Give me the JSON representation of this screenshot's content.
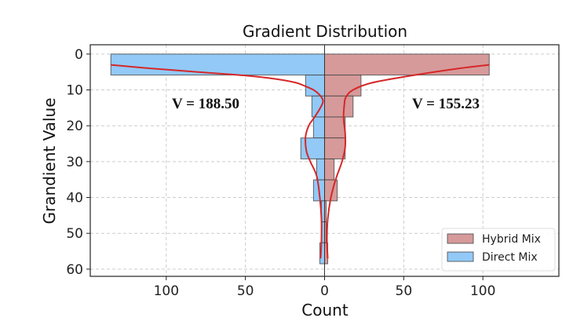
{
  "chart_data": {
    "type": "bar",
    "orientation": "horizontal-mirrored",
    "title": "Gradient Distribution",
    "xlabel": "Count",
    "ylabel": "Grandient Value",
    "xlim": [
      -148,
      148
    ],
    "ylim": [
      62,
      -2.6
    ],
    "xticks": [
      -100,
      -50,
      0,
      50,
      100
    ],
    "xtick_labels": [
      "100",
      "50",
      "0",
      "50",
      "100"
    ],
    "yticks": [
      0,
      10,
      20,
      30,
      40,
      50,
      60
    ],
    "ytick_labels": [
      "0",
      "10",
      "20",
      "30",
      "40",
      "50",
      "60"
    ],
    "grid": true,
    "legend_position": "bottom-right",
    "bin_edges": [
      0,
      5.85,
      11.7,
      17.55,
      23.4,
      29.25,
      35.1,
      40.95,
      46.8,
      52.65,
      58.5
    ],
    "series": [
      {
        "name": "Hybrid Mix",
        "side": "right",
        "color": "#d69a9a",
        "counts": [
          104,
          23,
          18,
          13,
          13,
          6,
          8,
          1,
          1,
          2
        ],
        "kde": [
          [
            3,
            104
          ],
          [
            4,
            85
          ],
          [
            6,
            55
          ],
          [
            8,
            30
          ],
          [
            10,
            18
          ],
          [
            12,
            13.5
          ],
          [
            14,
            12.5
          ],
          [
            18,
            12
          ],
          [
            22,
            13
          ],
          [
            26,
            13
          ],
          [
            30,
            11
          ],
          [
            35,
            7
          ],
          [
            40,
            4
          ],
          [
            46,
            2
          ],
          [
            52,
            1.5
          ],
          [
            57,
            2
          ]
        ],
        "annotation": "V = 155.23"
      },
      {
        "name": "Direct Mix",
        "side": "left",
        "color": "#92c9f7",
        "counts": [
          135,
          12,
          8,
          7,
          15,
          5,
          7,
          2,
          2,
          3
        ],
        "kde": [
          [
            3,
            135
          ],
          [
            4,
            110
          ],
          [
            5,
            80
          ],
          [
            6,
            50
          ],
          [
            7,
            30
          ],
          [
            8,
            18
          ],
          [
            9,
            12
          ],
          [
            10,
            7
          ],
          [
            11,
            4
          ],
          [
            12,
            2
          ],
          [
            13,
            1
          ],
          [
            14,
            1.5
          ],
          [
            16,
            4
          ],
          [
            18,
            7
          ],
          [
            20,
            10
          ],
          [
            23,
            12
          ],
          [
            27,
            11.5
          ],
          [
            30,
            9
          ],
          [
            34,
            5
          ],
          [
            40,
            3
          ],
          [
            46,
            2
          ],
          [
            52,
            2
          ],
          [
            57,
            2.5
          ]
        ],
        "annotation": "V = 188.50"
      }
    ],
    "kde_color": "#d62728"
  }
}
